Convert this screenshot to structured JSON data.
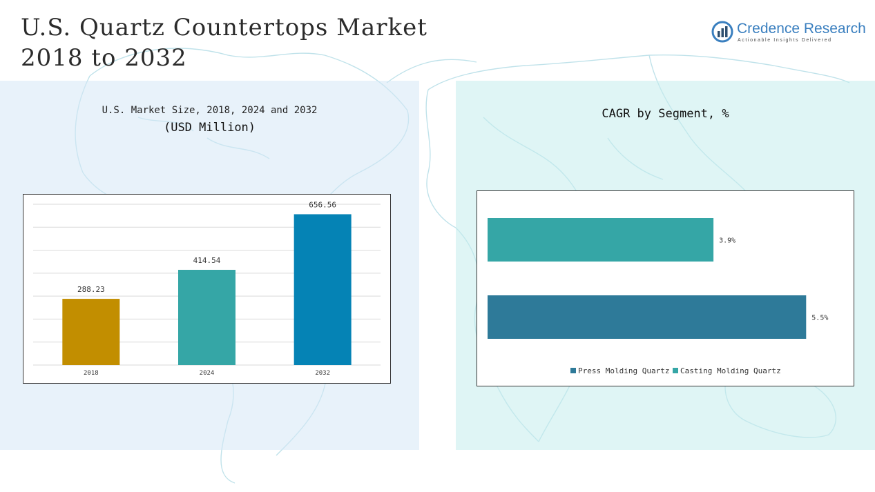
{
  "header": {
    "title_line1": "U.S. Quartz Countertops Market",
    "title_line2": "2018 to 2032"
  },
  "logo": {
    "name": "Credence Research",
    "tagline": "Actionable Insights Delivered",
    "icon": "bar-chart-circle-icon",
    "color": "#3a7fbf"
  },
  "left_panel": {
    "subtitle": "U.S. Market Size, 2018, 2024 and 2032",
    "unit": "(USD Million)"
  },
  "right_panel": {
    "title": "CAGR by Segment, %"
  },
  "chart_data": [
    {
      "type": "bar",
      "title": "U.S. Market Size, 2018, 2024 and 2032",
      "ylabel": "(USD Million)",
      "categories": [
        "2018",
        "2024",
        "2032"
      ],
      "values": [
        288.23,
        414.54,
        656.56
      ],
      "labels": [
        "288.23",
        "414.54",
        "656.56"
      ],
      "colors": [
        "#c28e00",
        "#35a6a6",
        "#0583b5"
      ],
      "ylim": [
        0,
        700
      ],
      "grid": true
    },
    {
      "type": "bar",
      "orientation": "horizontal",
      "title": "CAGR by Segment, %",
      "categories": [
        "Casting Molding Quartz",
        "Press Molding Quartz"
      ],
      "values": [
        3.9,
        5.5
      ],
      "labels": [
        "3.9%",
        "5.5%"
      ],
      "colors": [
        "#35a6a6",
        "#2e7a99"
      ],
      "xlim": [
        0,
        6.2
      ],
      "legend": {
        "placement": "bottom",
        "items": [
          {
            "name": "Press Molding Quartz",
            "color": "#2e7a99"
          },
          {
            "name": "Casting Molding Quartz",
            "color": "#35a6a6"
          }
        ]
      }
    }
  ]
}
